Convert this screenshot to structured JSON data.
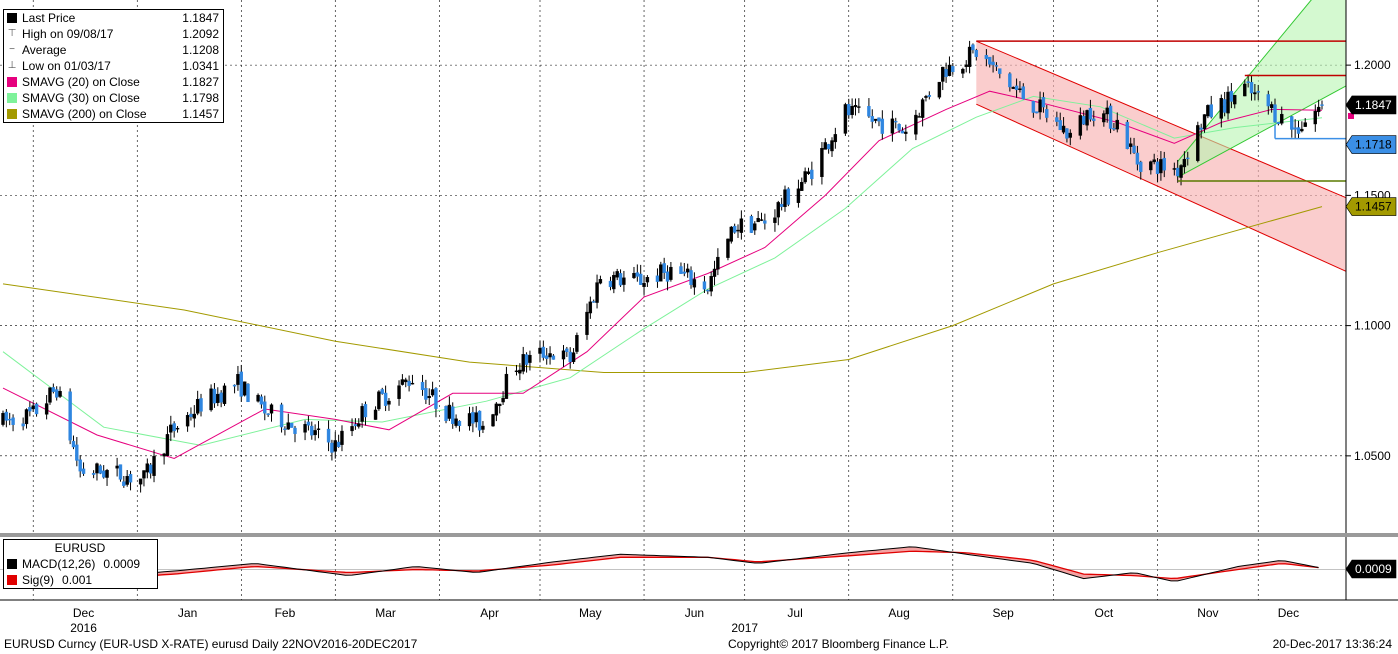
{
  "legend_main": [
    {
      "label": "Last Price",
      "value": "1.1847",
      "color": "#000000",
      "marker": "swatch"
    },
    {
      "label": "High on 09/08/17",
      "value": "1.2092",
      "color": "#555555",
      "marker": "high"
    },
    {
      "label": "Average",
      "value": "1.1208",
      "color": "#555555",
      "marker": "avg"
    },
    {
      "label": "Low on 01/03/17",
      "value": "1.0341",
      "color": "#555555",
      "marker": "low"
    },
    {
      "label": "SMAVG (20) on Close",
      "value": "1.1827",
      "color": "#e6007e",
      "marker": "swatch"
    },
    {
      "label": "SMAVG (30) on Close",
      "value": "1.1798",
      "color": "#7ef29a",
      "marker": "swatch"
    },
    {
      "label": "SMAVG (200) on Close",
      "value": "1.1457",
      "color": "#a39a00",
      "marker": "swatch"
    }
  ],
  "legend_macd": {
    "title": "EURUSD",
    "rows": [
      {
        "label": "MACD(12,26)",
        "value": "0.0009",
        "color": "#000000"
      },
      {
        "label": "Sig(9)",
        "value": "0.001",
        "color": "#e00000"
      }
    ]
  },
  "footer": {
    "left": "EURUSD Curncy (EUR-USD X-RATE) eurusd  Daily 22NOV2016-20DEC2017",
    "center": "Copyright© 2017 Bloomberg Finance L.P.",
    "right": "20-Dec-2017 13:36:24"
  },
  "price_tags": [
    {
      "value": "1.1847",
      "price": 1.1847,
      "bg": "#000000",
      "fg": "#ffffff"
    },
    {
      "value": "1.1718",
      "price": 1.1718,
      "bg": "#3b8fe6",
      "fg": "#000000"
    },
    {
      "value": "1.1457",
      "price": 1.1457,
      "bg": "#a39a00",
      "fg": "#000000"
    }
  ],
  "macd_tag": {
    "value": "0.0009",
    "bg": "#000000",
    "fg": "#ffffff"
  },
  "chart_data": {
    "type": "candlestick",
    "instrument": "EURUSD",
    "y_ticks": [
      "1.2000",
      "1.1500",
      "1.1000",
      "1.0500"
    ],
    "y_tick_values": [
      1.2,
      1.15,
      1.1,
      1.05
    ],
    "ylim": [
      1.02,
      1.225
    ],
    "x_months": [
      "Dec",
      "Jan",
      "Feb",
      "Mar",
      "Apr",
      "May",
      "Jun",
      "Jul",
      "Aug",
      "Sep",
      "Oct",
      "Nov",
      "Dec"
    ],
    "x_years": [
      "2016",
      "2017"
    ],
    "price_path": [
      {
        "date": "2016-11-22",
        "close": 1.063
      },
      {
        "date": "2016-12-01",
        "close": 1.066
      },
      {
        "date": "2016-12-08",
        "close": 1.076
      },
      {
        "date": "2016-12-15",
        "close": 1.044
      },
      {
        "date": "2016-12-22",
        "close": 1.044
      },
      {
        "date": "2017-01-03",
        "close": 1.041
      },
      {
        "date": "2017-01-11",
        "close": 1.059
      },
      {
        "date": "2017-01-20",
        "close": 1.07
      },
      {
        "date": "2017-01-31",
        "close": 1.078
      },
      {
        "date": "2017-02-08",
        "close": 1.067
      },
      {
        "date": "2017-02-20",
        "close": 1.06
      },
      {
        "date": "2017-03-01",
        "close": 1.054
      },
      {
        "date": "2017-03-10",
        "close": 1.068
      },
      {
        "date": "2017-03-24",
        "close": 1.08
      },
      {
        "date": "2017-04-03",
        "close": 1.067
      },
      {
        "date": "2017-04-14",
        "close": 1.062
      },
      {
        "date": "2017-04-24",
        "close": 1.085
      },
      {
        "date": "2017-05-03",
        "close": 1.09
      },
      {
        "date": "2017-05-10",
        "close": 1.087
      },
      {
        "date": "2017-05-19",
        "close": 1.119
      },
      {
        "date": "2017-05-30",
        "close": 1.117
      },
      {
        "date": "2017-06-09",
        "close": 1.121
      },
      {
        "date": "2017-06-20",
        "close": 1.115
      },
      {
        "date": "2017-06-28",
        "close": 1.138
      },
      {
        "date": "2017-07-07",
        "close": 1.14
      },
      {
        "date": "2017-07-20",
        "close": 1.158
      },
      {
        "date": "2017-07-31",
        "close": 1.182
      },
      {
        "date": "2017-08-10",
        "close": 1.178
      },
      {
        "date": "2017-08-18",
        "close": 1.175
      },
      {
        "date": "2017-08-29",
        "close": 1.198
      },
      {
        "date": "2017-09-08",
        "close": 1.205
      },
      {
        "date": "2017-09-20",
        "close": 1.19
      },
      {
        "date": "2017-09-29",
        "close": 1.181
      },
      {
        "date": "2017-10-06",
        "close": 1.173
      },
      {
        "date": "2017-10-12",
        "close": 1.183
      },
      {
        "date": "2017-10-20",
        "close": 1.178
      },
      {
        "date": "2017-10-26",
        "close": 1.163
      },
      {
        "date": "2017-11-07",
        "close": 1.16
      },
      {
        "date": "2017-11-15",
        "close": 1.18
      },
      {
        "date": "2017-11-27",
        "close": 1.191
      },
      {
        "date": "2017-12-05",
        "close": 1.183
      },
      {
        "date": "2017-12-12",
        "close": 1.175
      },
      {
        "date": "2017-12-20",
        "close": 1.1847
      }
    ],
    "smavg20_path": [
      {
        "date": "2016-11-22",
        "value": 1.076
      },
      {
        "date": "2016-12-20",
        "value": 1.058
      },
      {
        "date": "2017-01-12",
        "value": 1.049
      },
      {
        "date": "2017-02-08",
        "value": 1.068
      },
      {
        "date": "2017-03-01",
        "value": 1.064
      },
      {
        "date": "2017-03-17",
        "value": 1.06
      },
      {
        "date": "2017-04-05",
        "value": 1.074
      },
      {
        "date": "2017-04-26",
        "value": 1.074
      },
      {
        "date": "2017-05-15",
        "value": 1.09
      },
      {
        "date": "2017-06-01",
        "value": 1.111
      },
      {
        "date": "2017-06-20",
        "value": 1.12
      },
      {
        "date": "2017-07-07",
        "value": 1.13
      },
      {
        "date": "2017-07-25",
        "value": 1.15
      },
      {
        "date": "2017-08-10",
        "value": 1.171
      },
      {
        "date": "2017-08-30",
        "value": 1.183
      },
      {
        "date": "2017-09-12",
        "value": 1.19
      },
      {
        "date": "2017-09-29",
        "value": 1.185
      },
      {
        "date": "2017-10-20",
        "value": 1.178
      },
      {
        "date": "2017-11-06",
        "value": 1.17
      },
      {
        "date": "2017-11-20",
        "value": 1.178
      },
      {
        "date": "2017-12-05",
        "value": 1.183
      },
      {
        "date": "2017-12-20",
        "value": 1.1827
      }
    ],
    "smavg30_path": [
      {
        "date": "2016-11-22",
        "value": 1.09
      },
      {
        "date": "2016-12-22",
        "value": 1.061
      },
      {
        "date": "2017-01-20",
        "value": 1.054
      },
      {
        "date": "2017-02-20",
        "value": 1.064
      },
      {
        "date": "2017-03-15",
        "value": 1.063
      },
      {
        "date": "2017-04-15",
        "value": 1.071
      },
      {
        "date": "2017-05-10",
        "value": 1.08
      },
      {
        "date": "2017-05-31",
        "value": 1.098
      },
      {
        "date": "2017-06-20",
        "value": 1.114
      },
      {
        "date": "2017-07-10",
        "value": 1.126
      },
      {
        "date": "2017-07-31",
        "value": 1.145
      },
      {
        "date": "2017-08-20",
        "value": 1.168
      },
      {
        "date": "2017-09-08",
        "value": 1.18
      },
      {
        "date": "2017-09-25",
        "value": 1.188
      },
      {
        "date": "2017-10-15",
        "value": 1.184
      },
      {
        "date": "2017-11-06",
        "value": 1.172
      },
      {
        "date": "2017-11-24",
        "value": 1.176
      },
      {
        "date": "2017-12-20",
        "value": 1.1798
      }
    ],
    "smavg200_path": [
      {
        "date": "2016-11-22",
        "value": 1.116
      },
      {
        "date": "2017-01-15",
        "value": 1.106
      },
      {
        "date": "2017-03-01",
        "value": 1.094
      },
      {
        "date": "2017-04-10",
        "value": 1.086
      },
      {
        "date": "2017-05-20",
        "value": 1.082
      },
      {
        "date": "2017-07-01",
        "value": 1.082
      },
      {
        "date": "2017-08-01",
        "value": 1.087
      },
      {
        "date": "2017-09-01",
        "value": 1.1
      },
      {
        "date": "2017-10-01",
        "value": 1.116
      },
      {
        "date": "2017-11-01",
        "value": 1.128
      },
      {
        "date": "2017-12-20",
        "value": 1.1457
      }
    ],
    "macd_path": [
      {
        "date": "2016-11-22",
        "value": -0.008
      },
      {
        "date": "2016-12-15",
        "value": -0.006
      },
      {
        "date": "2017-01-12",
        "value": -0.001
      },
      {
        "date": "2017-02-05",
        "value": 0.004
      },
      {
        "date": "2017-03-05",
        "value": -0.004
      },
      {
        "date": "2017-03-25",
        "value": 0.002
      },
      {
        "date": "2017-04-12",
        "value": -0.002
      },
      {
        "date": "2017-05-05",
        "value": 0.005
      },
      {
        "date": "2017-05-25",
        "value": 0.01
      },
      {
        "date": "2017-06-20",
        "value": 0.008
      },
      {
        "date": "2017-07-05",
        "value": 0.004
      },
      {
        "date": "2017-08-01",
        "value": 0.011
      },
      {
        "date": "2017-08-20",
        "value": 0.015
      },
      {
        "date": "2017-09-05",
        "value": 0.01
      },
      {
        "date": "2017-09-25",
        "value": 0.004
      },
      {
        "date": "2017-10-10",
        "value": -0.006
      },
      {
        "date": "2017-10-25",
        "value": -0.002
      },
      {
        "date": "2017-11-06",
        "value": -0.008
      },
      {
        "date": "2017-11-25",
        "value": 0.002
      },
      {
        "date": "2017-12-08",
        "value": 0.006
      },
      {
        "date": "2017-12-20",
        "value": 0.0009
      }
    ],
    "sig_path": [
      {
        "date": "2016-11-22",
        "value": -0.009
      },
      {
        "date": "2016-12-15",
        "value": -0.007
      },
      {
        "date": "2017-01-12",
        "value": -0.003
      },
      {
        "date": "2017-02-05",
        "value": 0.002
      },
      {
        "date": "2017-03-05",
        "value": -0.002
      },
      {
        "date": "2017-03-25",
        "value": 0.0
      },
      {
        "date": "2017-04-12",
        "value": -0.001
      },
      {
        "date": "2017-05-05",
        "value": 0.003
      },
      {
        "date": "2017-05-25",
        "value": 0.008
      },
      {
        "date": "2017-06-20",
        "value": 0.008
      },
      {
        "date": "2017-07-05",
        "value": 0.005
      },
      {
        "date": "2017-08-01",
        "value": 0.009
      },
      {
        "date": "2017-08-20",
        "value": 0.012
      },
      {
        "date": "2017-09-05",
        "value": 0.011
      },
      {
        "date": "2017-09-25",
        "value": 0.006
      },
      {
        "date": "2017-10-10",
        "value": -0.003
      },
      {
        "date": "2017-10-25",
        "value": -0.004
      },
      {
        "date": "2017-11-06",
        "value": -0.006
      },
      {
        "date": "2017-11-25",
        "value": 0.0
      },
      {
        "date": "2017-12-08",
        "value": 0.004
      },
      {
        "date": "2017-12-20",
        "value": 0.001
      }
    ],
    "macd_ylim": [
      -0.02,
      0.02
    ],
    "annotations": {
      "down_channel": {
        "start": "2017-09-08",
        "end": "2017-12-20",
        "upper": [
          1.2092,
          1.153
        ],
        "lower": [
          1.185,
          1.125
        ],
        "fill": "#f7b2b2",
        "edge": "#e00000"
      },
      "up_channel": {
        "start": "2017-11-07",
        "end": "2017-12-20",
        "lower": [
          1.157,
          1.187
        ],
        "upper": [
          1.163,
          1.23
        ],
        "fill": "#b8f5b0",
        "edge": "#32c832"
      },
      "horizontal_lines": [
        {
          "price": 1.2092,
          "start": "2017-09-08",
          "end": "2017-12-20",
          "color": "#c00000"
        },
        {
          "price": 1.196,
          "start": "2017-11-27",
          "end": "2017-12-20",
          "color": "#c00000"
        },
        {
          "price": 1.1555,
          "start": "2017-11-07",
          "end": "2017-12-20",
          "color": "#5a7a00"
        },
        {
          "price": 1.1718,
          "start": "2017-12-06",
          "end": "2017-12-20",
          "color": "#3b8fe6"
        }
      ]
    }
  }
}
